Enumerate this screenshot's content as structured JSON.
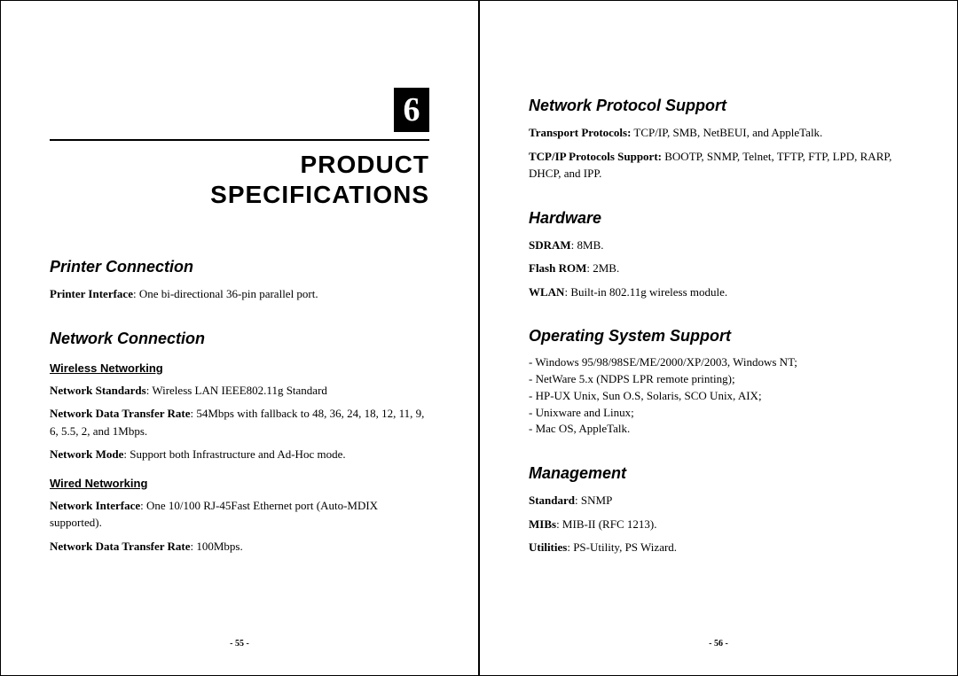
{
  "left_page": {
    "chapter_number": "6",
    "chapter_title_line1": "PRODUCT",
    "chapter_title_line2": "SPECIFICATIONS",
    "sections": {
      "printer_connection": {
        "heading": "Printer Connection",
        "items": {
          "printer_interface_label": "Printer Interface",
          "printer_interface_value": ": One bi-directional 36-pin parallel port."
        }
      },
      "network_connection": {
        "heading": "Network Connection",
        "wireless": {
          "sub_heading": "Wireless Networking",
          "standards_label": "Network Standards",
          "standards_value": ": Wireless LAN IEEE802.11g Standard",
          "transfer_label": "Network Data Transfer Rate",
          "transfer_value": ": 54Mbps with fallback to 48, 36, 24, 18, 12, 11, 9, 6, 5.5, 2, and 1Mbps.",
          "mode_label": "Network Mode",
          "mode_value": ": Support both Infrastructure and Ad-Hoc mode."
        },
        "wired": {
          "sub_heading": "Wired Networking",
          "interface_label": "Network Interface",
          "interface_value": ": One 10/100 RJ-45Fast Ethernet port (Auto-MDIX supported).",
          "transfer_label": "Network Data Transfer Rate",
          "transfer_value": ": 100Mbps."
        }
      }
    },
    "page_number": "- 55 -"
  },
  "right_page": {
    "sections": {
      "protocol": {
        "heading": "Network Protocol Support",
        "transport_label": "Transport Protocols:",
        "transport_value": " TCP/IP, SMB, NetBEUI, and AppleTalk.",
        "tcpip_label": "TCP/IP Protocols Support:",
        "tcpip_value": " BOOTP, SNMP, Telnet, TFTP, FTP, LPD, RARP, DHCP, and IPP."
      },
      "hardware": {
        "heading": "Hardware",
        "sdram_label": "SDRAM",
        "sdram_value": ": 8MB.",
        "flash_label": "Flash ROM",
        "flash_value": ": 2MB.",
        "wlan_label": "WLAN",
        "wlan_value": ": Built-in 802.11g wireless module."
      },
      "os_support": {
        "heading": "Operating System Support",
        "line1": "- Windows 95/98/98SE/ME/2000/XP/2003, Windows NT;",
        "line2": "- NetWare 5.x (NDPS LPR remote printing);",
        "line3": "- HP-UX Unix, Sun O.S, Solaris, SCO Unix, AIX;",
        "line4": "- Unixware and Linux;",
        "line5": "- Mac OS, AppleTalk."
      },
      "management": {
        "heading": "Management",
        "standard_label": "Standard",
        "standard_value": ": SNMP",
        "mibs_label": "MIBs",
        "mibs_value": ": MIB-II (RFC 1213).",
        "utilities_label": "Utilities",
        "utilities_value": ": PS-Utility, PS Wizard."
      }
    },
    "page_number": "- 56 -"
  }
}
